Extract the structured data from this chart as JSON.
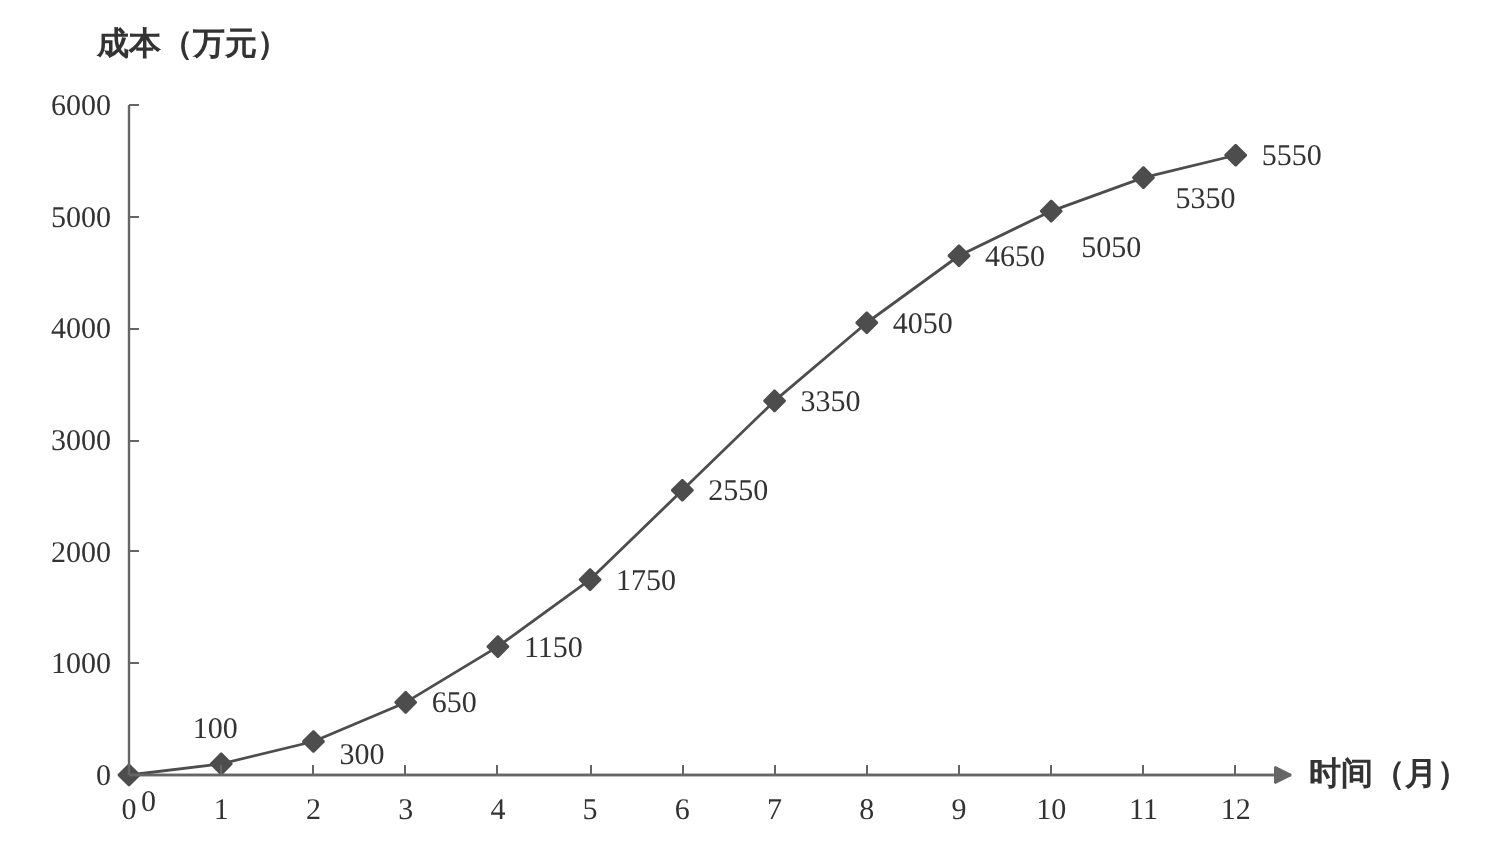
{
  "chart_data": {
    "type": "line",
    "xlabel": "时间（月）",
    "ylabel": "成本（万元）",
    "x": [
      0,
      1,
      2,
      3,
      4,
      5,
      6,
      7,
      8,
      9,
      10,
      11,
      12
    ],
    "values": [
      0,
      100,
      300,
      650,
      1150,
      1750,
      2550,
      3350,
      4050,
      4650,
      5050,
      5350,
      5550
    ],
    "color": "#4d4d4d",
    "marker": "diamond",
    "line_style": "solid",
    "data_labels": true,
    "xlim": [
      0,
      12.6
    ],
    "ylim": [
      0,
      6000
    ],
    "xticks": [
      0,
      1,
      2,
      3,
      4,
      5,
      6,
      7,
      8,
      9,
      10,
      11,
      12
    ],
    "yticks": [
      0,
      1000,
      2000,
      3000,
      4000,
      5000,
      6000
    ]
  }
}
